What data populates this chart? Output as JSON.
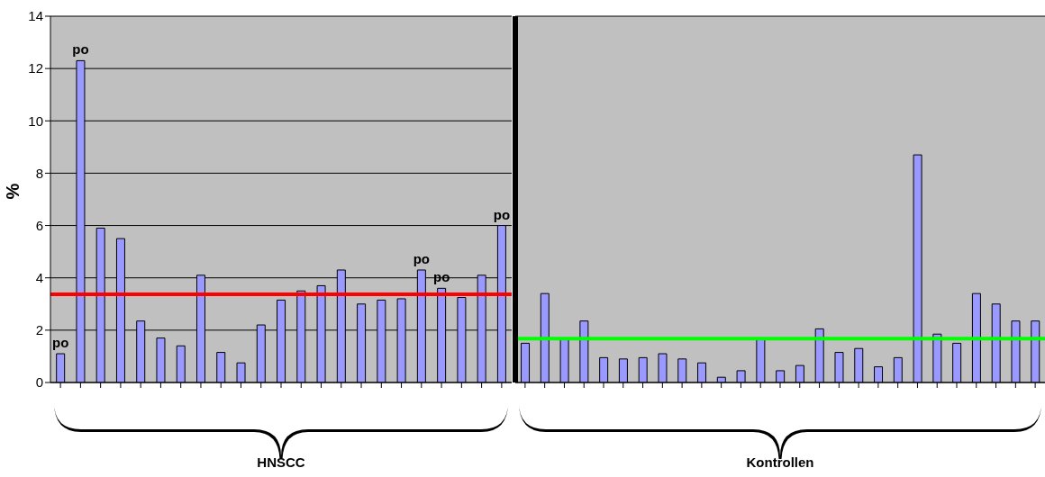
{
  "chart_data": [
    {
      "type": "bar",
      "xlabel": "HNSCC",
      "ylabel": "%",
      "categories": [
        null,
        null,
        null,
        null,
        null,
        null,
        null,
        null,
        null,
        null,
        null,
        null,
        null,
        null,
        null,
        null,
        null,
        null,
        null,
        null,
        null,
        null,
        null
      ],
      "values": [
        1.1,
        12.3,
        5.9,
        5.5,
        2.35,
        1.7,
        1.4,
        4.1,
        1.15,
        0.75,
        2.2,
        3.15,
        3.5,
        3.7,
        4.3,
        3.0,
        3.15,
        3.2,
        4.3,
        3.6,
        3.25,
        4.1,
        6.0
      ],
      "value_labels": [
        "po",
        "po",
        null,
        null,
        null,
        null,
        null,
        null,
        null,
        null,
        null,
        null,
        null,
        null,
        null,
        null,
        null,
        null,
        "po",
        "po",
        null,
        null,
        "po"
      ],
      "color": "#9999ff",
      "ylim": [
        0,
        14
      ],
      "yticks": [
        0,
        2,
        4,
        6,
        8,
        10,
        12,
        14
      ],
      "grid": "y",
      "tick_labels": "y",
      "ref_lines": [
        {
          "axis": "y",
          "value": 3.37,
          "color": "#ff0000"
        }
      ]
    },
    {
      "type": "bar",
      "xlabel": "Kontrollen",
      "categories": [
        null,
        null,
        null,
        null,
        null,
        null,
        null,
        null,
        null,
        null,
        null,
        null,
        null,
        null,
        null,
        null,
        null,
        null,
        null,
        null,
        null,
        null,
        null,
        null,
        null,
        null,
        null
      ],
      "values": [
        1.5,
        3.4,
        1.65,
        2.35,
        0.95,
        0.9,
        0.95,
        1.1,
        0.9,
        0.75,
        0.2,
        0.45,
        1.65,
        0.45,
        0.65,
        2.05,
        1.15,
        1.3,
        0.6,
        0.95,
        8.7,
        1.85,
        1.5,
        3.4,
        3.0,
        2.35,
        2.35
      ],
      "color": "#9999ff",
      "ylim": [
        0,
        14
      ],
      "yticks": [
        0,
        2,
        4,
        6,
        8,
        10,
        12,
        14
      ],
      "grid": "y",
      "tick_labels": false,
      "ref_lines": [
        {
          "axis": "y",
          "value": 1.68,
          "color": "#00ff00"
        }
      ]
    }
  ]
}
